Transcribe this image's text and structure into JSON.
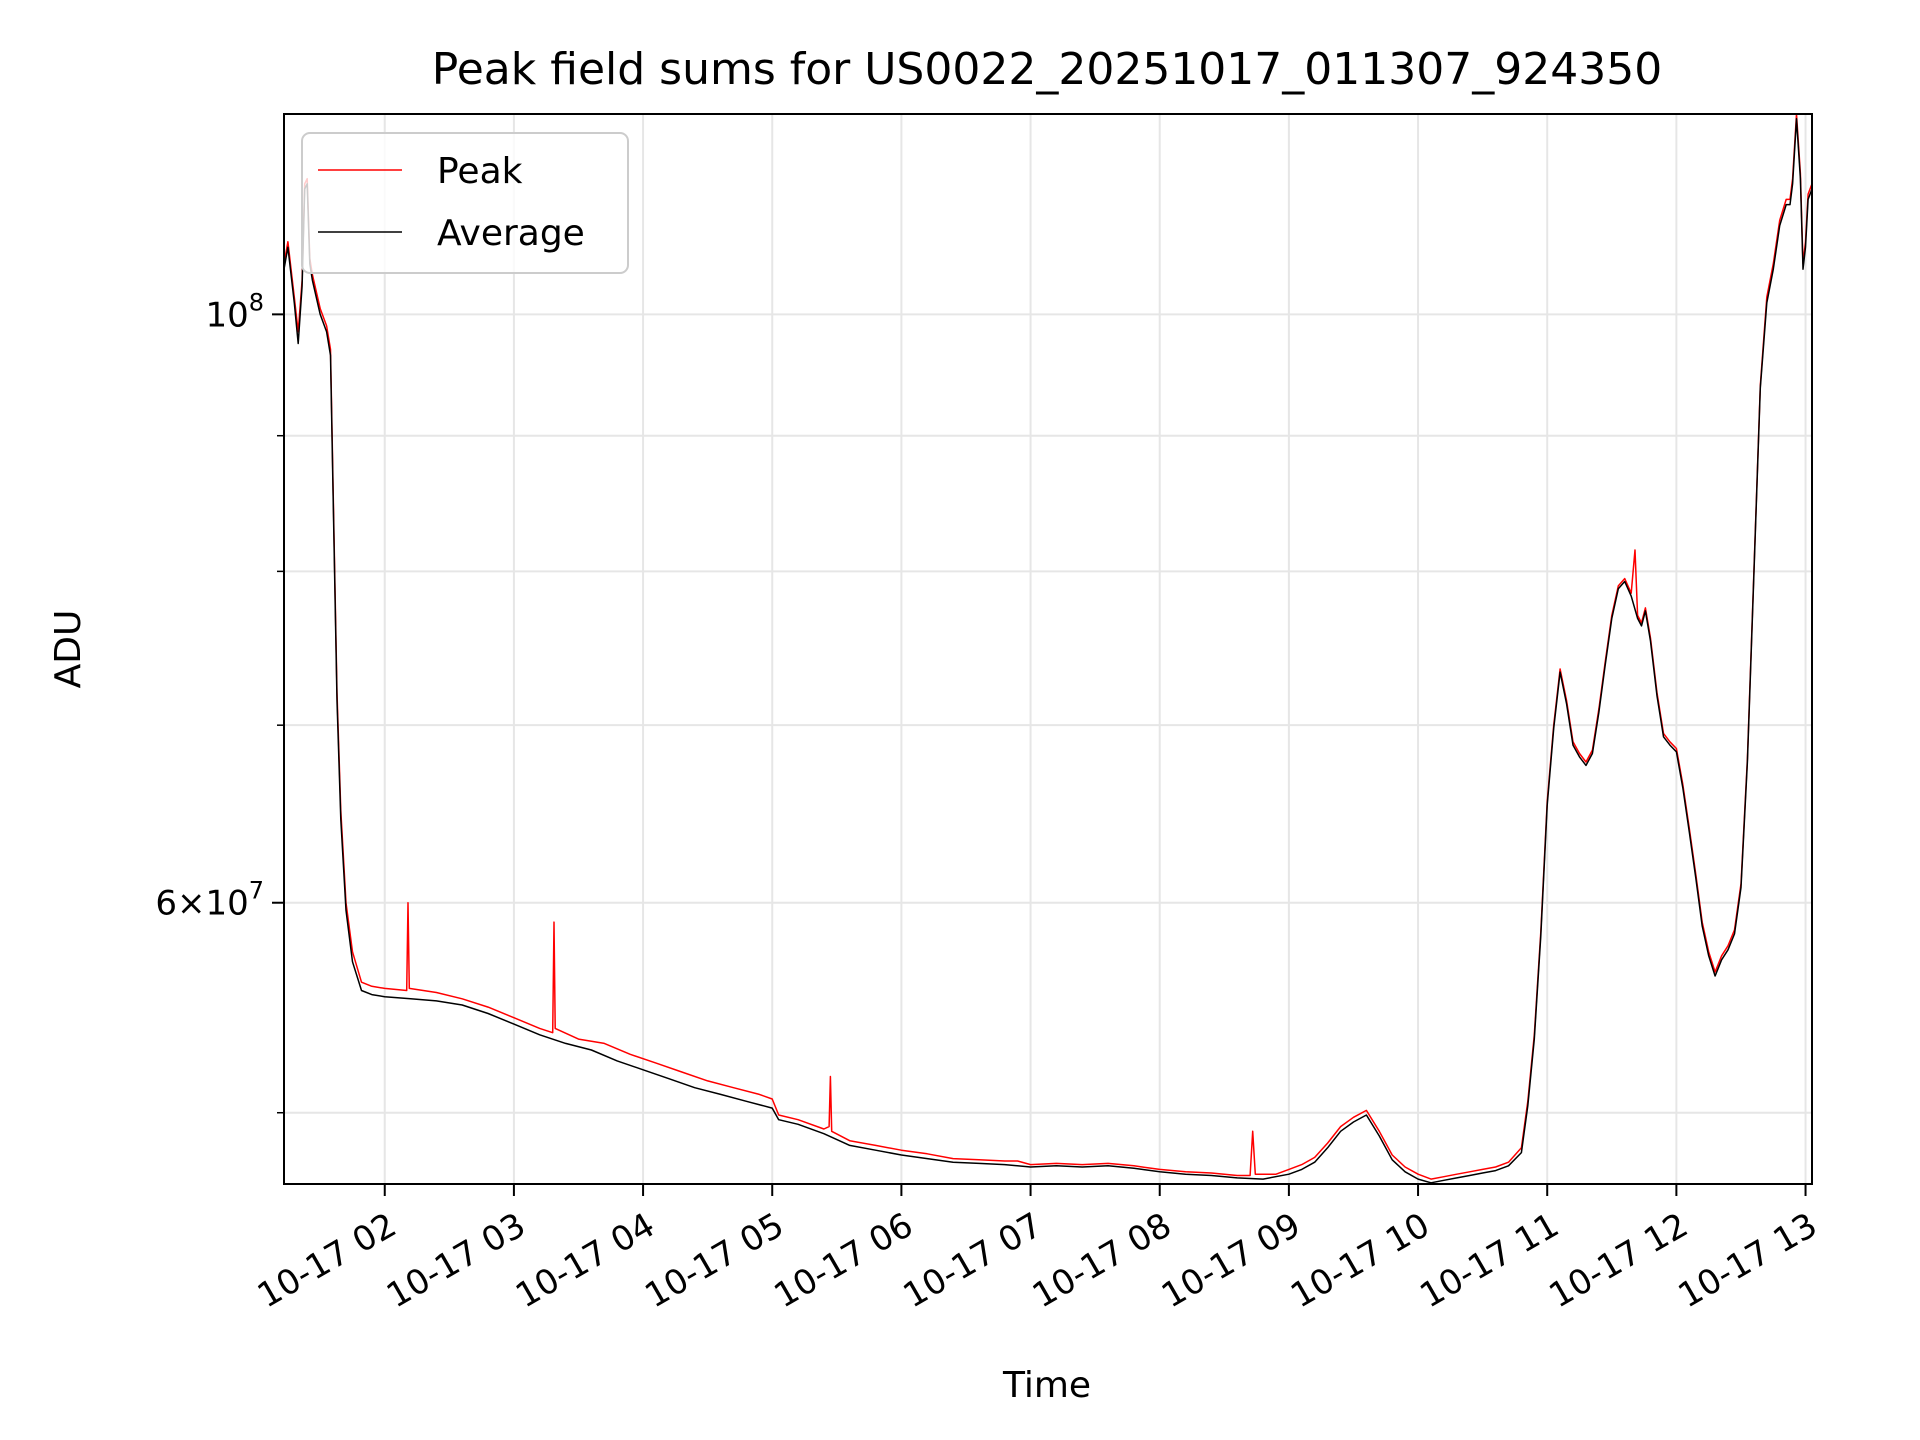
{
  "chart_data": {
    "type": "line",
    "title": "Peak field sums for US0022_20251017_011307_924350",
    "xlabel": "Time",
    "ylabel": "ADU",
    "yscale": "log",
    "grid": true,
    "legend_position": "top-left",
    "xlim_hours": [
      1.22,
      13.05
    ],
    "ylim": [
      47000000,
      119000000
    ],
    "x_ticks": [
      {
        "hour": 2,
        "label": "10-17 02"
      },
      {
        "hour": 3,
        "label": "10-17 03"
      },
      {
        "hour": 4,
        "label": "10-17 04"
      },
      {
        "hour": 5,
        "label": "10-17 05"
      },
      {
        "hour": 6,
        "label": "10-17 06"
      },
      {
        "hour": 7,
        "label": "10-17 07"
      },
      {
        "hour": 8,
        "label": "10-17 08"
      },
      {
        "hour": 9,
        "label": "10-17 09"
      },
      {
        "hour": 10,
        "label": "10-17 10"
      },
      {
        "hour": 11,
        "label": "10-17 11"
      },
      {
        "hour": 12,
        "label": "10-17 12"
      },
      {
        "hour": 13,
        "label": "10-17 13"
      }
    ],
    "y_major_ticks": [
      {
        "value": 100000000,
        "base": "10",
        "exp": "8"
      },
      {
        "value": 60000000,
        "base": "6×10",
        "exp": "7"
      }
    ],
    "y_minor_ticks": [
      50000000,
      70000000,
      80000000,
      90000000
    ],
    "series": [
      {
        "name": "Peak",
        "color": "#ff0000",
        "points": [
          [
            1.22,
            104500000
          ],
          [
            1.25,
            106500000
          ],
          [
            1.3,
            101500000
          ],
          [
            1.33,
            98500000
          ],
          [
            1.36,
            103000000
          ],
          [
            1.38,
            112000000
          ],
          [
            1.4,
            112500000
          ],
          [
            1.42,
            105000000
          ],
          [
            1.44,
            103500000
          ],
          [
            1.5,
            100500000
          ],
          [
            1.55,
            99000000
          ],
          [
            1.58,
            97000000
          ],
          [
            1.6,
            86000000
          ],
          [
            1.63,
            72000000
          ],
          [
            1.66,
            65000000
          ],
          [
            1.7,
            60000000
          ],
          [
            1.75,
            57500000
          ],
          [
            1.82,
            56000000
          ],
          [
            1.9,
            55800000
          ],
          [
            2.0,
            55700000
          ],
          [
            2.17,
            55600000
          ],
          [
            2.18,
            60000000
          ],
          [
            2.19,
            55700000
          ],
          [
            2.4,
            55500000
          ],
          [
            2.6,
            55200000
          ],
          [
            2.8,
            54800000
          ],
          [
            3.0,
            54300000
          ],
          [
            3.2,
            53800000
          ],
          [
            3.3,
            53600000
          ],
          [
            3.31,
            59000000
          ],
          [
            3.32,
            53800000
          ],
          [
            3.5,
            53300000
          ],
          [
            3.7,
            53100000
          ],
          [
            3.9,
            52600000
          ],
          [
            4.1,
            52200000
          ],
          [
            4.3,
            51800000
          ],
          [
            4.5,
            51400000
          ],
          [
            4.7,
            51100000
          ],
          [
            4.9,
            50800000
          ],
          [
            5.0,
            50600000
          ],
          [
            5.05,
            49900000
          ],
          [
            5.2,
            49700000
          ],
          [
            5.4,
            49300000
          ],
          [
            5.44,
            49400000
          ],
          [
            5.45,
            51600000
          ],
          [
            5.46,
            49200000
          ],
          [
            5.6,
            48800000
          ],
          [
            5.8,
            48600000
          ],
          [
            6.0,
            48400000
          ],
          [
            6.2,
            48250000
          ],
          [
            6.4,
            48050000
          ],
          [
            6.6,
            48000000
          ],
          [
            6.8,
            47950000
          ],
          [
            6.9,
            47950000
          ],
          [
            7.0,
            47800000
          ],
          [
            7.2,
            47850000
          ],
          [
            7.4,
            47800000
          ],
          [
            7.6,
            47850000
          ],
          [
            7.8,
            47750000
          ],
          [
            8.0,
            47600000
          ],
          [
            8.2,
            47500000
          ],
          [
            8.4,
            47450000
          ],
          [
            8.6,
            47350000
          ],
          [
            8.7,
            47350000
          ],
          [
            8.72,
            49200000
          ],
          [
            8.74,
            47400000
          ],
          [
            8.9,
            47400000
          ],
          [
            9.0,
            47600000
          ],
          [
            9.1,
            47800000
          ],
          [
            9.2,
            48100000
          ],
          [
            9.3,
            48700000
          ],
          [
            9.4,
            49400000
          ],
          [
            9.5,
            49800000
          ],
          [
            9.6,
            50100000
          ],
          [
            9.7,
            49200000
          ],
          [
            9.8,
            48200000
          ],
          [
            9.9,
            47700000
          ],
          [
            10.0,
            47400000
          ],
          [
            10.1,
            47200000
          ],
          [
            10.2,
            47300000
          ],
          [
            10.3,
            47400000
          ],
          [
            10.4,
            47500000
          ],
          [
            10.5,
            47600000
          ],
          [
            10.6,
            47700000
          ],
          [
            10.7,
            47900000
          ],
          [
            10.8,
            48500000
          ],
          [
            10.85,
            50500000
          ],
          [
            10.9,
            53500000
          ],
          [
            10.95,
            58500000
          ],
          [
            11.0,
            65500000
          ],
          [
            11.05,
            70000000
          ],
          [
            11.1,
            73500000
          ],
          [
            11.15,
            71500000
          ],
          [
            11.2,
            69000000
          ],
          [
            11.25,
            68300000
          ],
          [
            11.3,
            67800000
          ],
          [
            11.35,
            68500000
          ],
          [
            11.4,
            71000000
          ],
          [
            11.45,
            74000000
          ],
          [
            11.5,
            77000000
          ],
          [
            11.55,
            79000000
          ],
          [
            11.6,
            79500000
          ],
          [
            11.65,
            78500000
          ],
          [
            11.68,
            81500000
          ],
          [
            11.7,
            77000000
          ],
          [
            11.73,
            76500000
          ],
          [
            11.76,
            77500000
          ],
          [
            11.8,
            75500000
          ],
          [
            11.85,
            72000000
          ],
          [
            11.9,
            69500000
          ],
          [
            11.95,
            69000000
          ],
          [
            12.0,
            68600000
          ],
          [
            12.05,
            66500000
          ],
          [
            12.1,
            64000000
          ],
          [
            12.15,
            61500000
          ],
          [
            12.2,
            59000000
          ],
          [
            12.25,
            57500000
          ],
          [
            12.3,
            56500000
          ],
          [
            12.35,
            57300000
          ],
          [
            12.4,
            57800000
          ],
          [
            12.45,
            58600000
          ],
          [
            12.5,
            61000000
          ],
          [
            12.55,
            68000000
          ],
          [
            12.6,
            80000000
          ],
          [
            12.65,
            94000000
          ],
          [
            12.7,
            101500000
          ],
          [
            12.75,
            104500000
          ],
          [
            12.8,
            108500000
          ],
          [
            12.85,
            110500000
          ],
          [
            12.88,
            110500000
          ],
          [
            12.9,
            112500000
          ],
          [
            12.93,
            119000000
          ],
          [
            12.96,
            113000000
          ],
          [
            12.98,
            104500000
          ],
          [
            13.0,
            106500000
          ],
          [
            13.02,
            111000000
          ],
          [
            13.05,
            112000000
          ]
        ]
      },
      {
        "name": "Average",
        "color": "#000000",
        "points": [
          [
            1.22,
            104000000
          ],
          [
            1.25,
            106000000
          ],
          [
            1.3,
            101000000
          ],
          [
            1.33,
            97500000
          ],
          [
            1.36,
            102500000
          ],
          [
            1.38,
            111500000
          ],
          [
            1.4,
            112000000
          ],
          [
            1.42,
            104500000
          ],
          [
            1.44,
            103000000
          ],
          [
            1.5,
            100000000
          ],
          [
            1.55,
            98500000
          ],
          [
            1.58,
            96500000
          ],
          [
            1.6,
            85500000
          ],
          [
            1.63,
            71500000
          ],
          [
            1.66,
            64500000
          ],
          [
            1.7,
            59600000
          ],
          [
            1.75,
            57000000
          ],
          [
            1.82,
            55600000
          ],
          [
            1.9,
            55400000
          ],
          [
            2.0,
            55300000
          ],
          [
            2.2,
            55200000
          ],
          [
            2.4,
            55100000
          ],
          [
            2.6,
            54900000
          ],
          [
            2.8,
            54500000
          ],
          [
            3.0,
            54000000
          ],
          [
            3.2,
            53500000
          ],
          [
            3.4,
            53100000
          ],
          [
            3.6,
            52800000
          ],
          [
            3.8,
            52300000
          ],
          [
            4.0,
            51900000
          ],
          [
            4.2,
            51500000
          ],
          [
            4.4,
            51100000
          ],
          [
            4.6,
            50800000
          ],
          [
            4.8,
            50500000
          ],
          [
            5.0,
            50200000
          ],
          [
            5.05,
            49700000
          ],
          [
            5.2,
            49500000
          ],
          [
            5.4,
            49100000
          ],
          [
            5.6,
            48600000
          ],
          [
            5.8,
            48400000
          ],
          [
            6.0,
            48200000
          ],
          [
            6.2,
            48050000
          ],
          [
            6.4,
            47900000
          ],
          [
            6.6,
            47850000
          ],
          [
            6.8,
            47800000
          ],
          [
            7.0,
            47700000
          ],
          [
            7.2,
            47750000
          ],
          [
            7.4,
            47700000
          ],
          [
            7.6,
            47750000
          ],
          [
            7.8,
            47650000
          ],
          [
            8.0,
            47500000
          ],
          [
            8.2,
            47400000
          ],
          [
            8.4,
            47350000
          ],
          [
            8.6,
            47250000
          ],
          [
            8.8,
            47200000
          ],
          [
            9.0,
            47400000
          ],
          [
            9.1,
            47600000
          ],
          [
            9.2,
            47900000
          ],
          [
            9.3,
            48500000
          ],
          [
            9.4,
            49200000
          ],
          [
            9.5,
            49600000
          ],
          [
            9.6,
            49900000
          ],
          [
            9.7,
            49000000
          ],
          [
            9.8,
            48000000
          ],
          [
            9.9,
            47500000
          ],
          [
            10.0,
            47200000
          ],
          [
            10.1,
            47050000
          ],
          [
            10.2,
            47150000
          ],
          [
            10.3,
            47250000
          ],
          [
            10.4,
            47350000
          ],
          [
            10.5,
            47450000
          ],
          [
            10.6,
            47550000
          ],
          [
            10.7,
            47750000
          ],
          [
            10.8,
            48300000
          ],
          [
            10.85,
            50300000
          ],
          [
            10.9,
            53300000
          ],
          [
            10.95,
            58300000
          ],
          [
            11.0,
            65300000
          ],
          [
            11.05,
            69800000
          ],
          [
            11.1,
            73300000
          ],
          [
            11.15,
            71300000
          ],
          [
            11.2,
            68800000
          ],
          [
            11.25,
            68100000
          ],
          [
            11.3,
            67600000
          ],
          [
            11.35,
            68300000
          ],
          [
            11.4,
            70800000
          ],
          [
            11.45,
            73800000
          ],
          [
            11.5,
            76800000
          ],
          [
            11.55,
            78800000
          ],
          [
            11.6,
            79300000
          ],
          [
            11.65,
            78300000
          ],
          [
            11.7,
            76800000
          ],
          [
            11.73,
            76300000
          ],
          [
            11.76,
            77300000
          ],
          [
            11.8,
            75300000
          ],
          [
            11.85,
            71800000
          ],
          [
            11.9,
            69300000
          ],
          [
            11.95,
            68800000
          ],
          [
            12.0,
            68400000
          ],
          [
            12.05,
            66300000
          ],
          [
            12.1,
            63800000
          ],
          [
            12.15,
            61300000
          ],
          [
            12.2,
            58800000
          ],
          [
            12.25,
            57300000
          ],
          [
            12.3,
            56300000
          ],
          [
            12.35,
            57100000
          ],
          [
            12.4,
            57600000
          ],
          [
            12.45,
            58400000
          ],
          [
            12.5,
            60800000
          ],
          [
            12.55,
            67800000
          ],
          [
            12.6,
            79800000
          ],
          [
            12.65,
            93800000
          ],
          [
            12.7,
            101000000
          ],
          [
            12.75,
            104000000
          ],
          [
            12.8,
            108000000
          ],
          [
            12.85,
            110000000
          ],
          [
            12.88,
            110000000
          ],
          [
            12.9,
            112000000
          ],
          [
            12.93,
            118500000
          ],
          [
            12.96,
            112500000
          ],
          [
            12.98,
            104000000
          ],
          [
            13.0,
            106000000
          ],
          [
            13.02,
            110500000
          ],
          [
            13.05,
            111500000
          ]
        ]
      }
    ]
  }
}
